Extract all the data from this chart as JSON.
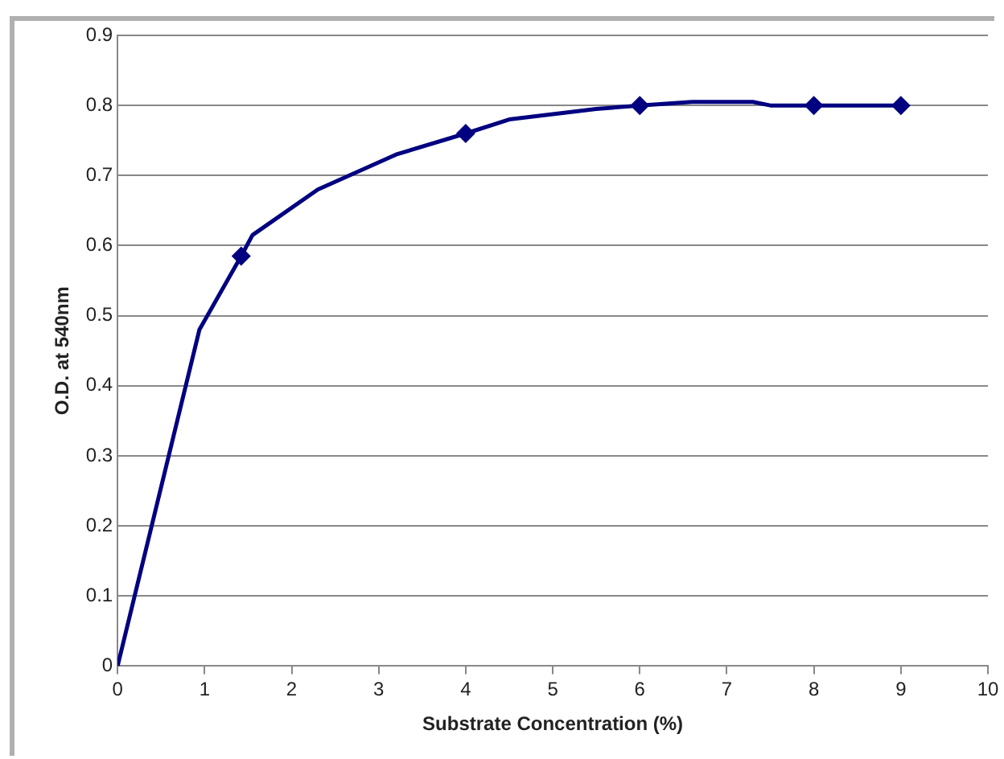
{
  "chart_data": {
    "type": "line",
    "xlabel": "Substrate Concentration (%)",
    "ylabel": "O.D. at 540nm",
    "xlim": [
      0,
      10
    ],
    "xticks": [
      0,
      1,
      2,
      3,
      4,
      5,
      6,
      7,
      8,
      9,
      10
    ],
    "ylim": [
      0,
      0.9
    ],
    "yticks": [
      0,
      0.1,
      0.2,
      0.3,
      0.4,
      0.5,
      0.6,
      0.7,
      0.8,
      0.9
    ],
    "grid": "y",
    "legend": false,
    "series": [
      {
        "type": "line",
        "marker": "none",
        "color": "#000080",
        "x": [
          0,
          0.94,
          1.42,
          1.55,
          2.3,
          3.2,
          4,
          4.5,
          5.5,
          6,
          6.6,
          7.3,
          7.5,
          8,
          9
        ],
        "values": [
          0,
          0.48,
          0.585,
          0.615,
          0.68,
          0.73,
          0.76,
          0.78,
          0.795,
          0.8,
          0.805,
          0.805,
          0.8,
          0.8,
          0.8
        ]
      },
      {
        "type": "scatter",
        "marker": "diamond",
        "color": "#000080",
        "x": [
          1.42,
          4,
          6,
          8,
          9
        ],
        "values": [
          0.585,
          0.76,
          0.8,
          0.8,
          0.8
        ]
      }
    ]
  }
}
